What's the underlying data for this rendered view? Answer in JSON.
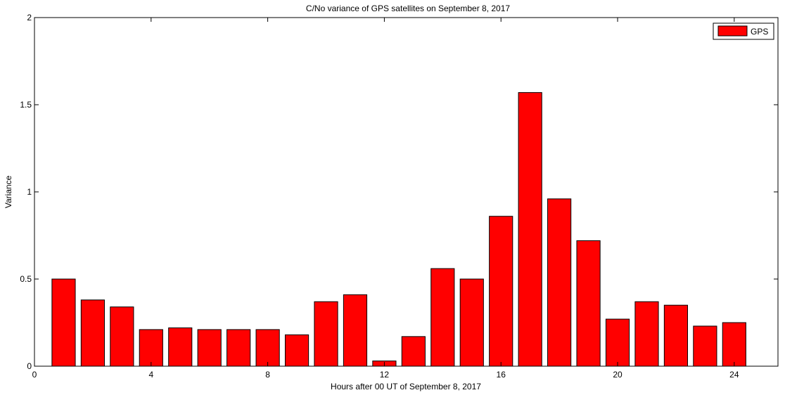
{
  "chart_data": {
    "type": "bar",
    "title": "C/No variance of GPS satellites on September 8, 2017",
    "xlabel": "Hours after 00 UT of September 8, 2017",
    "ylabel": "Variance",
    "xlim": [
      0,
      25.5
    ],
    "ylim": [
      0,
      2
    ],
    "xticks": [
      0,
      4,
      8,
      12,
      16,
      20,
      24
    ],
    "yticks": [
      0,
      0.5,
      1,
      1.5,
      2
    ],
    "xtick_labels": [
      "0",
      "4",
      "8",
      "12",
      "16",
      "20",
      "24"
    ],
    "ytick_labels": [
      "0",
      "0.5",
      "1",
      "1.5",
      "2"
    ],
    "legend_position": "top-right",
    "grid": false,
    "series": [
      {
        "name": "GPS",
        "color": "#ff0000",
        "x": [
          1,
          2,
          3,
          4,
          5,
          6,
          7,
          8,
          9,
          10,
          11,
          12,
          13,
          14,
          15,
          16,
          17,
          18,
          19,
          20,
          21,
          22,
          23,
          24
        ],
        "values": [
          0.5,
          0.38,
          0.34,
          0.21,
          0.22,
          0.21,
          0.21,
          0.21,
          0.18,
          0.37,
          0.41,
          0.03,
          0.17,
          0.56,
          0.5,
          0.86,
          1.57,
          0.96,
          0.72,
          0.27,
          0.37,
          0.35,
          0.23,
          0.25
        ]
      }
    ]
  }
}
